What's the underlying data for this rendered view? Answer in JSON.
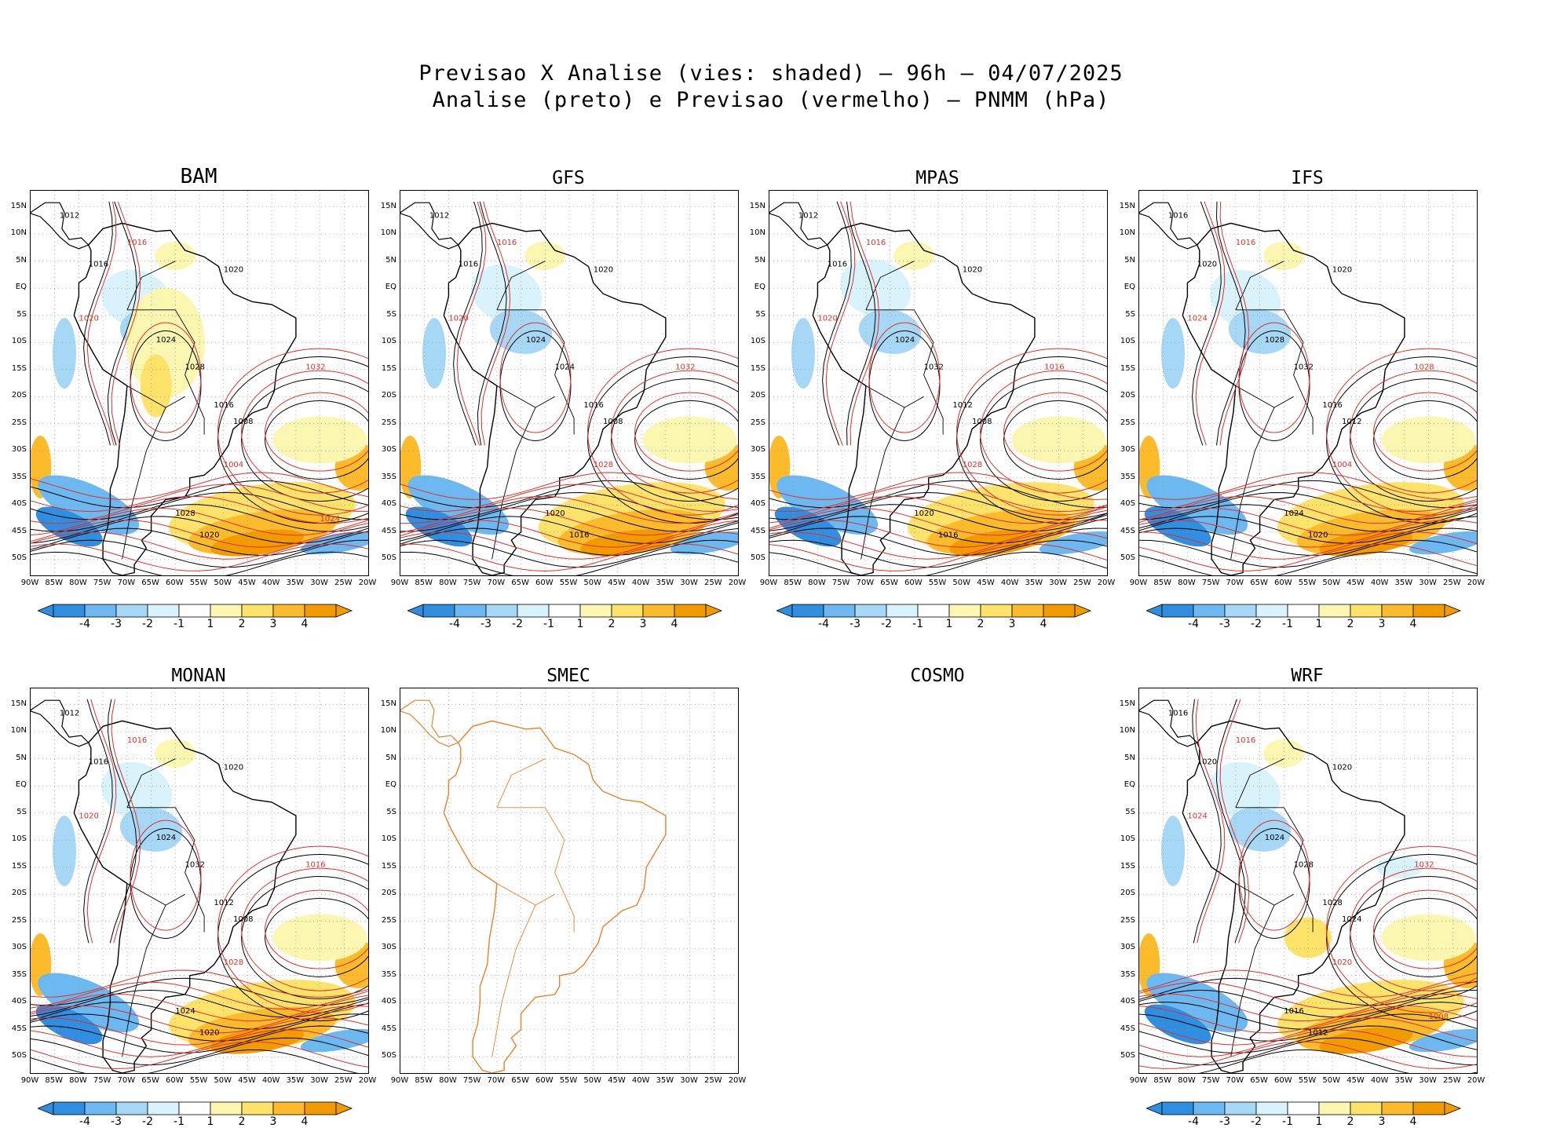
{
  "title_line1": "Previsao X Analise (vies: shaded) – 96h – 04/07/2025",
  "title_line2": "Analise (preto) e Previsao (vermelho) – PNMM (hPa)",
  "colors": {
    "analysis_contour": "#000000",
    "forecast_contour": "#e0302a",
    "coastline_smec": "#e8822a",
    "neg4": "#2f8ee0",
    "neg3": "#6cb8f0",
    "neg2": "#a6d8f5",
    "neg1": "#d8f3fb",
    "pos1": "#fbf6b0",
    "pos2": "#fde36a",
    "pos3": "#fcbb2a",
    "pos4": "#f29b00"
  },
  "chart_data": {
    "type": "heatmap",
    "variable": "PNMM (hPa)",
    "forecast_hours": 96,
    "date": "04/07/2025",
    "x_ticks": [
      "90W",
      "85W",
      "80W",
      "75W",
      "70W",
      "65W",
      "60W",
      "55W",
      "50W",
      "45W",
      "40W",
      "35W",
      "30W",
      "25W",
      "20W"
    ],
    "y_ticks": [
      "15N",
      "10N",
      "5N",
      "EQ",
      "5S",
      "10S",
      "15S",
      "20S",
      "25S",
      "30S",
      "35S",
      "40S",
      "45S",
      "50S"
    ],
    "colorbar_levels": [
      "-4",
      "-3",
      "-2",
      "-1",
      "1",
      "2",
      "3",
      "4"
    ],
    "colorbar_range": [
      -4,
      4
    ],
    "panels": [
      {
        "name": "BAM",
        "has_data": true,
        "contour_labels": [
          "1012",
          "1016",
          "1016",
          "1020",
          "1020",
          "1024",
          "1028",
          "1032",
          "1016",
          "1008",
          "1004",
          "1028",
          "1020",
          "1024"
        ]
      },
      {
        "name": "GFS",
        "has_data": true,
        "contour_labels": [
          "1012",
          "1016",
          "1016",
          "1020",
          "1020",
          "1024",
          "1024",
          "1032",
          "1016",
          "1008",
          "1028",
          "1020",
          "1016"
        ]
      },
      {
        "name": "MPAS",
        "has_data": true,
        "contour_labels": [
          "1012",
          "1016",
          "1016",
          "1020",
          "1020",
          "1024",
          "1032",
          "1016",
          "1012",
          "1008",
          "1028",
          "1020",
          "1016"
        ]
      },
      {
        "name": "IFS",
        "has_data": true,
        "contour_labels": [
          "1016",
          "1016",
          "1020",
          "1020",
          "1024",
          "1028",
          "1032",
          "1028",
          "1016",
          "1012",
          "1004",
          "1024",
          "1020"
        ]
      },
      {
        "name": "MONAN",
        "has_data": true,
        "contour_labels": [
          "1012",
          "1016",
          "1016",
          "1020",
          "1020",
          "1024",
          "1032",
          "1016",
          "1012",
          "1008",
          "1028",
          "1024",
          "1020"
        ]
      },
      {
        "name": "SMEC",
        "has_data": false,
        "contour_labels": []
      },
      {
        "name": "COSMO",
        "has_data": false,
        "contour_labels": []
      },
      {
        "name": "WRF",
        "has_data": true,
        "contour_labels": [
          "1016",
          "1016",
          "1020",
          "1020",
          "1024",
          "1024",
          "1028",
          "1032",
          "1028",
          "1024",
          "1020",
          "1016",
          "1012",
          "1008"
        ]
      }
    ]
  }
}
